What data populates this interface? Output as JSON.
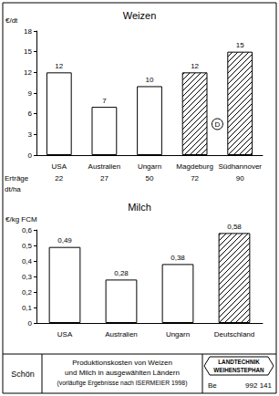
{
  "chart_data": [
    {
      "type": "bar",
      "title": "Weizen",
      "y_label": "€/dt",
      "categories": [
        "USA",
        "Australien",
        "Ungarn",
        "Magdeburg",
        "Südhannover"
      ],
      "values": [
        12,
        7,
        10,
        12,
        15
      ],
      "colors": [
        "#ffffff",
        "#ffffff",
        "#ffffff",
        "#000000",
        "#000000"
      ],
      "ylim": [
        0,
        18
      ],
      "yticks": [
        0,
        3,
        6,
        9,
        12,
        15,
        18
      ],
      "grid": false,
      "data_labels": true,
      "yields": {
        "label": "Erträge",
        "unit": "dt/ha",
        "values": [
          22,
          27,
          50,
          72,
          90
        ]
      },
      "annotations": [
        {
          "text": "D"
        }
      ]
    },
    {
      "type": "bar",
      "title": "Milch",
      "y_label": "€/kg FCM",
      "categories": [
        "USA",
        "Australien",
        "Ungarn",
        "Deutschland"
      ],
      "values": [
        0.49,
        0.28,
        0.38,
        0.58
      ],
      "value_labels": [
        "0,49",
        "0,28",
        "0,38",
        "0,58"
      ],
      "colors": [
        "#ffffff",
        "#ffffff",
        "#ffffff",
        "#000000"
      ],
      "ylim": [
        0,
        0.6
      ],
      "yticks": [
        0,
        {
          "value": 0.1,
          "label": "0,1"
        },
        {
          "value": 0.2,
          "label": "0,2"
        },
        {
          "value": 0.3,
          "label": "0,3"
        },
        {
          "value": 0.4,
          "label": "0,4"
        },
        {
          "value": 0.5,
          "label": "0,5"
        },
        {
          "value": 0.6,
          "label": "0,6"
        }
      ],
      "grid": false,
      "data_labels": true
    }
  ],
  "footer": {
    "author": "Schön",
    "title": [
      "Produktionskosten von Weizen",
      "und Milch in ausgewählten Ländern",
      "(vorläufige Ergebnisse nach ISERMEIER 1998)"
    ],
    "logo": [
      "LANDTECHNIK",
      "WEIHENSTEPHAN"
    ],
    "code": [
      "Be",
      "992 141"
    ]
  }
}
